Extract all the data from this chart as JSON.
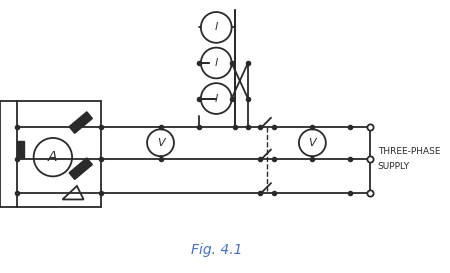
{
  "title": "Fig. 4.1",
  "title_color": "#4472c4",
  "title_fontsize": 10,
  "bg_color": "#ffffff",
  "line_color": "#2a2a2a",
  "line_width": 1.3,
  "label_three_phase": [
    "THREE-PHASE",
    "SUPPLY"
  ],
  "fig_width": 4.5,
  "fig_height": 2.73
}
